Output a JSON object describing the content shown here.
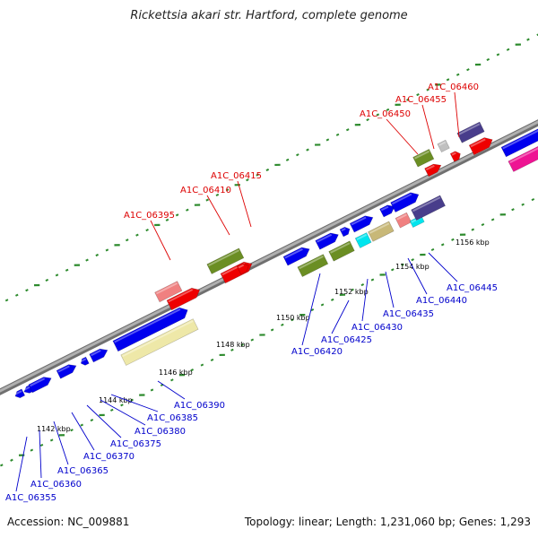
{
  "header": {
    "title": "Rickettsia akari str. Hartford, complete genome"
  },
  "footer": {
    "accession": "Accession: NC_009881",
    "stats": "Topology: linear; Length: 1,231,060 bp; Genes: 1,293"
  },
  "colors": {
    "backbone": "#8c8c8c",
    "tick_dots": "#2e8b2e",
    "label_forward": "#dd0000",
    "label_reverse": "#0000cc",
    "leader": "#333333"
  },
  "tick_labels": [
    "1142 kbp",
    "1144 kbp",
    "1146 kbp",
    "1148 kbp",
    "1150 kbp",
    "1152 kbp",
    "1154 kbp",
    "1156 kbp"
  ],
  "features": [
    {
      "track": "r1",
      "color": "#0000ee"
    },
    {
      "track": "r1",
      "color": "#0000ee"
    },
    {
      "track": "r1",
      "color": "#0000ee"
    },
    {
      "track": "r1",
      "color": "#0000ee"
    },
    {
      "track": "r1",
      "color": "#0000ee"
    },
    {
      "track": "r1",
      "color": "#0000ee"
    },
    {
      "track": "r1",
      "color": "#0000ee"
    },
    {
      "track": "r2",
      "color": "#eee8a8"
    },
    {
      "track": "f2",
      "color": "#f08080"
    },
    {
      "track": "f1",
      "color": "#ee0000"
    },
    {
      "track": "f2",
      "color": "#6b8e23"
    },
    {
      "track": "f1",
      "color": "#ee0000"
    },
    {
      "track": "f1",
      "color": "#ee0000"
    },
    {
      "track": "r1",
      "color": "#0000ee"
    },
    {
      "track": "r2",
      "color": "#6b8e23"
    },
    {
      "track": "r1",
      "color": "#0000ee"
    },
    {
      "track": "r2",
      "color": "#6b8e23"
    },
    {
      "track": "r1",
      "color": "#0000ee"
    },
    {
      "track": "r2",
      "color": "#00e5ee"
    },
    {
      "track": "r1",
      "color": "#0000ee"
    },
    {
      "track": "r2",
      "color": "#c8b878"
    },
    {
      "track": "r1",
      "color": "#0000ee"
    },
    {
      "track": "r2",
      "color": "#f08080"
    },
    {
      "track": "r1",
      "color": "#0000ee"
    },
    {
      "track": "r2",
      "color": "#00e5ee"
    },
    {
      "track": "r2",
      "color": "#483d8b"
    },
    {
      "track": "f2",
      "color": "#6b8e23"
    },
    {
      "track": "f1",
      "color": "#ee0000"
    },
    {
      "track": "f2",
      "color": "#c0c0c0"
    },
    {
      "track": "f1",
      "color": "#ee0000"
    },
    {
      "track": "f2",
      "color": "#483d8b"
    },
    {
      "track": "f1",
      "color": "#ee0000"
    },
    {
      "track": "r1",
      "color": "#0000ee"
    },
    {
      "track": "r2",
      "color": "#ee1493"
    }
  ],
  "gene_labels": [
    {
      "text": "A1C_06355",
      "strand": "reverse"
    },
    {
      "text": "A1C_06360",
      "strand": "reverse"
    },
    {
      "text": "A1C_06365",
      "strand": "reverse"
    },
    {
      "text": "A1C_06370",
      "strand": "reverse"
    },
    {
      "text": "A1C_06375",
      "strand": "reverse"
    },
    {
      "text": "A1C_06380",
      "strand": "reverse"
    },
    {
      "text": "A1C_06385",
      "strand": "reverse"
    },
    {
      "text": "A1C_06390",
      "strand": "reverse"
    },
    {
      "text": "A1C_06420",
      "strand": "reverse"
    },
    {
      "text": "A1C_06425",
      "strand": "reverse"
    },
    {
      "text": "A1C_06430",
      "strand": "reverse"
    },
    {
      "text": "A1C_06435",
      "strand": "reverse"
    },
    {
      "text": "A1C_06440",
      "strand": "reverse"
    },
    {
      "text": "A1C_06445",
      "strand": "reverse"
    },
    {
      "text": "A1C_06395",
      "strand": "forward"
    },
    {
      "text": "A1C_06410",
      "strand": "forward"
    },
    {
      "text": "A1C_06415",
      "strand": "forward"
    },
    {
      "text": "A1C_06450",
      "strand": "forward"
    },
    {
      "text": "A1C_06455",
      "strand": "forward"
    },
    {
      "text": "A1C_06460",
      "strand": "forward"
    }
  ]
}
